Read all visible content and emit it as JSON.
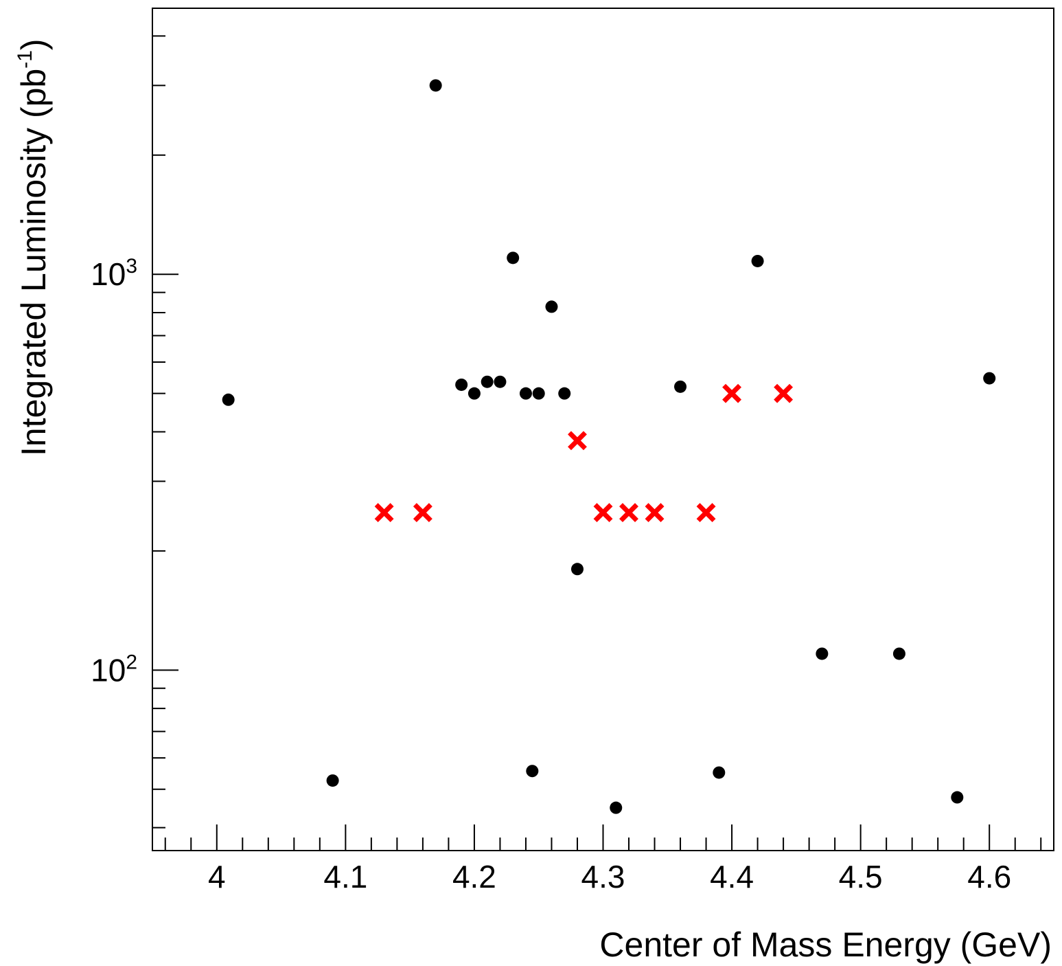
{
  "chart_data": {
    "type": "scatter",
    "title": "",
    "xlabel": "Center of Mass Energy (GeV)",
    "ylabel": {
      "prefix": "Integrated Luminosity (pb",
      "sup": "-1",
      "suffix": ")"
    },
    "xlim": [
      3.95,
      4.65
    ],
    "ylim": [
      35,
      4700
    ],
    "yscale": "log",
    "grid": false,
    "legend": "none",
    "x_ticks": [
      "4",
      "4.1",
      "4.2",
      "4.3",
      "4.4",
      "4.5",
      "4.6"
    ],
    "y_ticks": [
      {
        "base": "10",
        "exp": "2",
        "value": 100
      },
      {
        "base": "10",
        "exp": "3",
        "value": 1000
      }
    ],
    "colors": {
      "existing": "#000000",
      "proposed": "#ff0000"
    },
    "series": [
      {
        "marker": "circle",
        "color": "#000000",
        "points": [
          {
            "x": 4.009,
            "y": 482
          },
          {
            "x": 4.09,
            "y": 52.6
          },
          {
            "x": 4.17,
            "y": 3000
          },
          {
            "x": 4.19,
            "y": 526
          },
          {
            "x": 4.2,
            "y": 500
          },
          {
            "x": 4.21,
            "y": 535
          },
          {
            "x": 4.22,
            "y": 535
          },
          {
            "x": 4.23,
            "y": 1100
          },
          {
            "x": 4.24,
            "y": 500
          },
          {
            "x": 4.245,
            "y": 55.6
          },
          {
            "x": 4.25,
            "y": 500
          },
          {
            "x": 4.26,
            "y": 828
          },
          {
            "x": 4.27,
            "y": 500
          },
          {
            "x": 4.28,
            "y": 180
          },
          {
            "x": 4.31,
            "y": 44.9
          },
          {
            "x": 4.36,
            "y": 520
          },
          {
            "x": 4.39,
            "y": 55.1
          },
          {
            "x": 4.42,
            "y": 1080
          },
          {
            "x": 4.47,
            "y": 110
          },
          {
            "x": 4.53,
            "y": 110
          },
          {
            "x": 4.575,
            "y": 47.7
          },
          {
            "x": 4.6,
            "y": 546
          }
        ]
      },
      {
        "marker": "x",
        "color": "#ff0000",
        "points": [
          {
            "x": 4.13,
            "y": 250
          },
          {
            "x": 4.16,
            "y": 250
          },
          {
            "x": 4.28,
            "y": 380
          },
          {
            "x": 4.3,
            "y": 250
          },
          {
            "x": 4.32,
            "y": 250
          },
          {
            "x": 4.34,
            "y": 250
          },
          {
            "x": 4.38,
            "y": 250
          },
          {
            "x": 4.4,
            "y": 500
          },
          {
            "x": 4.44,
            "y": 500
          }
        ]
      }
    ]
  }
}
